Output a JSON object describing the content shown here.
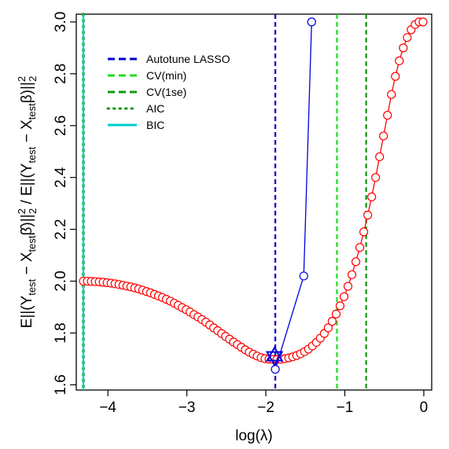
{
  "chart_data": {
    "type": "line",
    "xlabel": "log(λ)",
    "ylabel": "E||(Y_test − X_test β̂)||₂² / E||(Y_test − X_test β)||₂²",
    "xlim": [
      -4.4,
      0.1
    ],
    "ylim": [
      1.58,
      3.03
    ],
    "x_ticks": [
      -4,
      -3,
      -2,
      -1,
      0
    ],
    "y_ticks": [
      1.6,
      1.8,
      2.0,
      2.2,
      2.4,
      2.6,
      2.8,
      3.0
    ],
    "x_tick_labels": [
      "−4",
      "−3",
      "−2",
      "−1",
      "0"
    ],
    "y_tick_labels": [
      "1.6",
      "1.8",
      "2.0",
      "2.2",
      "2.4",
      "2.6",
      "2.8",
      "3.0"
    ],
    "grid": false,
    "legend_position": "top-left",
    "legend": [
      {
        "label": "Autotune LASSO",
        "color": "#0000cc",
        "style": "dashed"
      },
      {
        "label": "CV(min)",
        "color": "#22dd22",
        "style": "dashed"
      },
      {
        "label": "CV(1se)",
        "color": "#119911",
        "style": "dashed"
      },
      {
        "label": "AIC",
        "color": "#119911",
        "style": "dotted"
      },
      {
        "label": "BIC",
        "color": "#00cccc",
        "style": "solid"
      }
    ],
    "series": [
      {
        "color": "#ff0000",
        "marker": "circle",
        "x": [
          -4.31,
          -4.26,
          -4.21,
          -4.16,
          -4.11,
          -4.06,
          -4.01,
          -3.96,
          -3.91,
          -3.86,
          -3.81,
          -3.76,
          -3.71,
          -3.66,
          -3.61,
          -3.56,
          -3.51,
          -3.46,
          -3.41,
          -3.36,
          -3.31,
          -3.26,
          -3.21,
          -3.16,
          -3.11,
          -3.06,
          -3.01,
          -2.96,
          -2.91,
          -2.86,
          -2.81,
          -2.76,
          -2.71,
          -2.66,
          -2.61,
          -2.56,
          -2.51,
          -2.46,
          -2.41,
          -2.36,
          -2.31,
          -2.26,
          -2.21,
          -2.16,
          -2.11,
          -2.06,
          -2.01,
          -1.96,
          -1.91,
          -1.86,
          -1.81,
          -1.76,
          -1.71,
          -1.66,
          -1.61,
          -1.56,
          -1.51,
          -1.46,
          -1.41,
          -1.36,
          -1.31,
          -1.26,
          -1.21,
          -1.16,
          -1.11,
          -1.06,
          -1.01,
          -0.96,
          -0.91,
          -0.86,
          -0.81,
          -0.76,
          -0.71,
          -0.66,
          -0.61,
          -0.56,
          -0.51,
          -0.46,
          -0.41,
          -0.36,
          -0.31,
          -0.26,
          -0.21,
          -0.16,
          -0.11,
          -0.06,
          -0.01
        ],
        "y": [
          2.0,
          2.0,
          1.999,
          1.998,
          1.997,
          1.996,
          1.994,
          1.992,
          1.99,
          1.987,
          1.984,
          1.981,
          1.978,
          1.974,
          1.97,
          1.965,
          1.96,
          1.955,
          1.949,
          1.943,
          1.937,
          1.93,
          1.923,
          1.915,
          1.907,
          1.898,
          1.89,
          1.881,
          1.871,
          1.862,
          1.852,
          1.842,
          1.831,
          1.82,
          1.809,
          1.798,
          1.787,
          1.776,
          1.765,
          1.755,
          1.745,
          1.735,
          1.726,
          1.718,
          1.711,
          1.705,
          1.701,
          1.699,
          1.698,
          1.698,
          1.699,
          1.701,
          1.704,
          1.708,
          1.713,
          1.72,
          1.728,
          1.738,
          1.75,
          1.764,
          1.78,
          1.798,
          1.82,
          1.845,
          1.873,
          1.905,
          1.94,
          1.98,
          2.025,
          2.075,
          2.13,
          2.19,
          2.255,
          2.325,
          2.4,
          2.48,
          2.56,
          2.64,
          2.72,
          2.79,
          2.85,
          2.9,
          2.94,
          2.97,
          2.99,
          3.0,
          3.0
        ]
      },
      {
        "color": "#0000dd",
        "marker": "circle",
        "x": [
          -1.88,
          -1.52,
          -1.42
        ],
        "y": [
          1.66,
          2.02,
          3.0
        ]
      }
    ],
    "vertical_lines": [
      {
        "x": -1.88,
        "color": "#0000cc",
        "style": "dashed"
      },
      {
        "x": -1.1,
        "color": "#22dd22",
        "style": "dashed"
      },
      {
        "x": -0.73,
        "color": "#119911",
        "style": "dashed"
      },
      {
        "x": -4.31,
        "color": "#119911",
        "style": "dotted"
      },
      {
        "x": -4.31,
        "color": "#00cccc",
        "style": "solid"
      }
    ],
    "star_marker": {
      "x": -1.89,
      "y": 1.71,
      "color": "#0000dd"
    }
  }
}
